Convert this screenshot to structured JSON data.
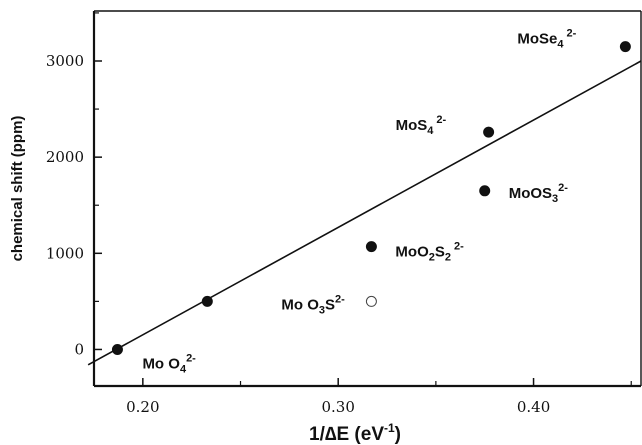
{
  "chart_data": {
    "type": "scatter",
    "xlabel_main": "1/∆E",
    "xlabel_unit": "(eV",
    "xlabel_unit_exp": "-1",
    "xlabel_unit_close": ")",
    "ylabel": "chemical shift  (ppm)",
    "xlim": [
      0.175,
      0.455
    ],
    "ylim": [
      -380,
      3520
    ],
    "x_ticks": [
      {
        "value": 0.2,
        "label": "0.20"
      },
      {
        "value": 0.3,
        "label": "0.30"
      },
      {
        "value": 0.4,
        "label": "0.40"
      }
    ],
    "y_ticks": [
      {
        "value": 0,
        "label": "0"
      },
      {
        "value": 1000,
        "label": "1000"
      },
      {
        "value": 2000,
        "label": "2000"
      },
      {
        "value": 3000,
        "label": "3000"
      }
    ],
    "points": [
      {
        "x": 0.187,
        "y": 0,
        "filled": true,
        "label_main": "Mo O",
        "label_sub": "4",
        "label_sup": "2-"
      },
      {
        "x": 0.233,
        "y": 500,
        "filled": true,
        "label_main": "",
        "label_sub": "",
        "label_sup": ""
      },
      {
        "x": 0.317,
        "y": 500,
        "filled": false,
        "label_main": "Mo O",
        "label_sub": "3",
        "label_rest": "S",
        "label_sup": "2-"
      },
      {
        "x": 0.317,
        "y": 1070,
        "filled": true,
        "label_main": "MoO",
        "label_sub": "2",
        "label_rest": "S",
        "label_sub2": "2",
        "label_sup": "2-"
      },
      {
        "x": 0.375,
        "y": 1650,
        "filled": true,
        "label_main": "MoOS",
        "label_sub": "3",
        "label_sup": "2-"
      },
      {
        "x": 0.377,
        "y": 2260,
        "filled": true,
        "label_main": "MoS",
        "label_sub": "4",
        "label_sup": "2-"
      },
      {
        "x": 0.447,
        "y": 3150,
        "filled": true,
        "label_main": "MoSe",
        "label_sub": "4",
        "label_sup": "2-"
      }
    ],
    "fit_line": {
      "x": [
        0.172,
        0.455
      ],
      "y": [
        -160,
        3000
      ]
    },
    "grid": false,
    "legend": "none"
  }
}
